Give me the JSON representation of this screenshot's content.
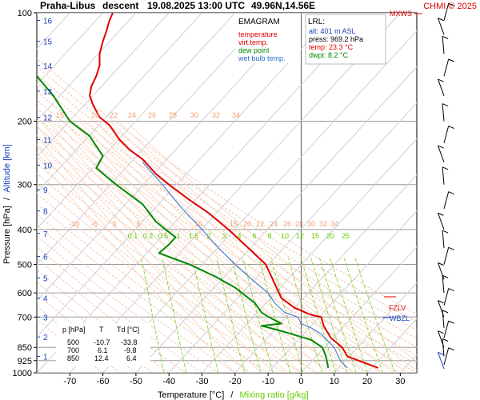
{
  "header": {
    "station": "Praha-Libus",
    "mode": "descent",
    "datetime": "19.08.2025 13:00 UTC",
    "coords": "49.96N,14.56E",
    "copyright": "CHMI © 2025"
  },
  "legend": {
    "title": "EMAGRAM",
    "items": [
      {
        "label": "temperature",
        "color": "#e00000"
      },
      {
        "label": "virt.temp.",
        "color": "#e00000"
      },
      {
        "label": "dew point",
        "color": "#008800"
      },
      {
        "label": "wet bulb temp.",
        "color": "#2a6fd0"
      }
    ]
  },
  "lrl": {
    "title": "LRL:",
    "alt": "alt: 401 m ASL",
    "press": "press: 969.2 hPa",
    "temp": "temp: 23.3 °C",
    "dwpt": "dwpt: 8.2 °C"
  },
  "table": {
    "headers": [
      "p [hPa]",
      "T",
      "Td [°C]"
    ],
    "rows": [
      [
        "500",
        "-10.7",
        "-33.8"
      ],
      [
        "700",
        "6.1",
        "-9.8"
      ],
      [
        "850",
        "12.4",
        "6.4"
      ]
    ]
  },
  "levels": {
    "mxws": "MXWS",
    "fzlv": "FZLV",
    "wbzl": "WBZL"
  },
  "colors": {
    "temperature": "#e00000",
    "dewpoint": "#008800",
    "wetbulb": "#2a6fd0",
    "axis_text": "#000000",
    "mixing": "#66cc00",
    "altitude": "#1a3fbf"
  },
  "chart_data": {
    "type": "line",
    "title": "",
    "xlabel": "Temperature [°C]",
    "xlabel_sep": "/",
    "xlabel2": "Mixing ratio [g/kg]",
    "ylabel": "Pressure [hPa]",
    "ylabel_sep": "/",
    "ylabel2": "Altitude [km]",
    "xlim": [
      -80,
      35
    ],
    "ylim": [
      1000,
      100
    ],
    "yscale": "log",
    "x_ticks": [
      -70,
      -60,
      -50,
      -40,
      -30,
      -20,
      -10,
      0,
      10,
      20,
      30
    ],
    "y_ticks": [
      100,
      200,
      300,
      400,
      500,
      600,
      700,
      850,
      925,
      1000
    ],
    "altitude_ticks_km": [
      1,
      2,
      3,
      4,
      5,
      6,
      7,
      8,
      9,
      10,
      11,
      12,
      13,
      14,
      15,
      16
    ],
    "altitude_tick_pressures": [
      900,
      795,
      700,
      620,
      545,
      475,
      410,
      355,
      310,
      265,
      225,
      195,
      165,
      140,
      120,
      105
    ],
    "mixing_ratio_labels": [
      "0.1",
      "0.2",
      "0.5",
      "1",
      "1.5",
      "2",
      "3",
      "4",
      "6",
      "8",
      "10",
      "12",
      "15",
      "20",
      "25"
    ],
    "mixing_ratio_gkg": [
      0.1,
      0.2,
      0.5,
      1,
      1.5,
      2,
      3,
      4,
      6,
      8,
      10,
      12,
      15,
      20,
      25
    ],
    "theta_labels_low": [
      "-10",
      "-5",
      "0",
      "5",
      "10",
      "15",
      "20",
      "22",
      "24",
      "26",
      "28",
      "30",
      "32",
      "34"
    ],
    "theta_labels_high": [
      "15",
      "20",
      "22",
      "24",
      "26",
      "28",
      "30",
      "32",
      "34"
    ],
    "series": [
      {
        "name": "temperature",
        "points": [
          [
            23.3,
            969
          ],
          [
            18,
            930
          ],
          [
            14,
            900
          ],
          [
            12.4,
            850
          ],
          [
            9,
            800
          ],
          [
            6.8,
            740
          ],
          [
            6.1,
            700
          ],
          [
            3,
            690
          ],
          [
            -2,
            660
          ],
          [
            -6,
            620
          ],
          [
            -10.7,
            500
          ],
          [
            -16,
            450
          ],
          [
            -22,
            400
          ],
          [
            -28,
            360
          ],
          [
            -34,
            330
          ],
          [
            -40,
            300
          ],
          [
            -44,
            280
          ],
          [
            -48,
            255
          ],
          [
            -52,
            240
          ],
          [
            -55,
            225
          ],
          [
            -58,
            205
          ],
          [
            -61,
            195
          ],
          [
            -63,
            180
          ],
          [
            -64,
            170
          ],
          [
            -63.5,
            160
          ],
          [
            -62,
            150
          ],
          [
            -61,
            140
          ],
          [
            -61,
            130
          ],
          [
            -60,
            120
          ],
          [
            -59,
            113
          ],
          [
            -58,
            105
          ],
          [
            -57,
            100
          ]
        ]
      },
      {
        "name": "dew point",
        "points": [
          [
            8.2,
            969
          ],
          [
            7.5,
            900
          ],
          [
            6.4,
            850
          ],
          [
            3,
            810
          ],
          [
            -5,
            770
          ],
          [
            -12,
            740
          ],
          [
            -6,
            730
          ],
          [
            -9.8,
            700
          ],
          [
            -12,
            680
          ],
          [
            -14,
            640
          ],
          [
            -20,
            580
          ],
          [
            -26,
            540
          ],
          [
            -33.8,
            500
          ],
          [
            -43,
            465
          ],
          [
            -40,
            440
          ],
          [
            -38,
            420
          ],
          [
            -41,
            400
          ],
          [
            -44,
            380
          ],
          [
            -48,
            340
          ],
          [
            -56,
            300
          ],
          [
            -62,
            270
          ],
          [
            -60,
            250
          ],
          [
            -64,
            220
          ],
          [
            -70,
            200
          ],
          [
            -75,
            170
          ],
          [
            -80,
            150
          ]
        ]
      },
      {
        "name": "wet bulb temp.",
        "points": [
          [
            14,
            969
          ],
          [
            12,
            930
          ],
          [
            10,
            850
          ],
          [
            6,
            780
          ],
          [
            3,
            750
          ],
          [
            0,
            730
          ],
          [
            -1,
            700
          ],
          [
            -5,
            680
          ],
          [
            -8,
            640
          ],
          [
            -10,
            600
          ],
          [
            -14,
            560
          ],
          [
            -20,
            500
          ],
          [
            -25,
            450
          ],
          [
            -30,
            400
          ],
          [
            -36,
            350
          ],
          [
            -42,
            300
          ],
          [
            -48,
            260
          ]
        ]
      }
    ],
    "wind_barbs_levels": [
      975,
      950,
      900,
      850,
      800,
      750,
      700,
      650,
      600,
      550,
      500,
      450,
      400,
      350,
      300,
      260,
      230,
      200,
      170,
      150,
      130,
      115,
      105
    ]
  }
}
